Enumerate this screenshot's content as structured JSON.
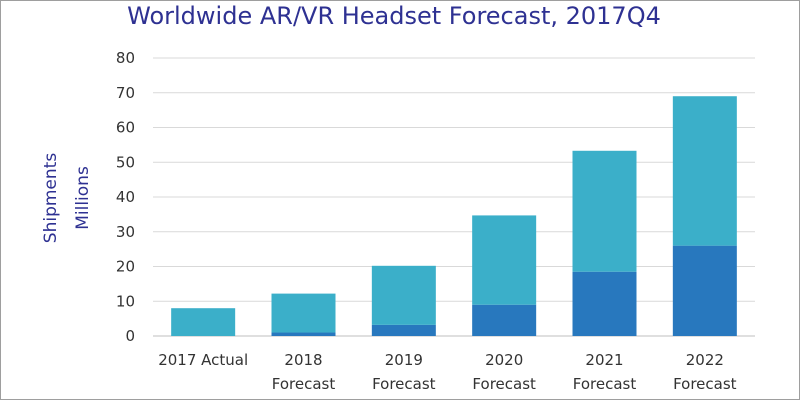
{
  "chart_data": {
    "type": "bar",
    "stacked": true,
    "title": "Worldwide AR/VR Headset Forecast, 2017Q4",
    "ylabel": [
      "Shipments",
      "Millions"
    ],
    "xlabel": "",
    "categories": [
      [
        "2017 Actual"
      ],
      [
        "2018",
        "Forecast"
      ],
      [
        "2019",
        "Forecast"
      ],
      [
        "2020",
        "Forecast"
      ],
      [
        "2021",
        "Forecast"
      ],
      [
        "2022",
        "Forecast"
      ]
    ],
    "y_ticks": [
      "0",
      "10",
      "20",
      "30",
      "40",
      "50",
      "60",
      "70",
      "80"
    ],
    "ylim": [
      0,
      80
    ],
    "grid": true,
    "legend": "none",
    "colors": {
      "title": "#2e3192",
      "ylabel": "#2e3192",
      "bottom_series": "#2878be",
      "top_series": "#3bafc9",
      "grid": "#d9d9d9",
      "tick_text": "#333333",
      "frame": "#9e9e9e"
    },
    "series": [
      {
        "values": [
          0,
          1,
          3.2,
          9,
          18.5,
          26
        ]
      },
      {
        "values": [
          8,
          11.2,
          17,
          25.7,
          34.8,
          43
        ]
      }
    ]
  }
}
